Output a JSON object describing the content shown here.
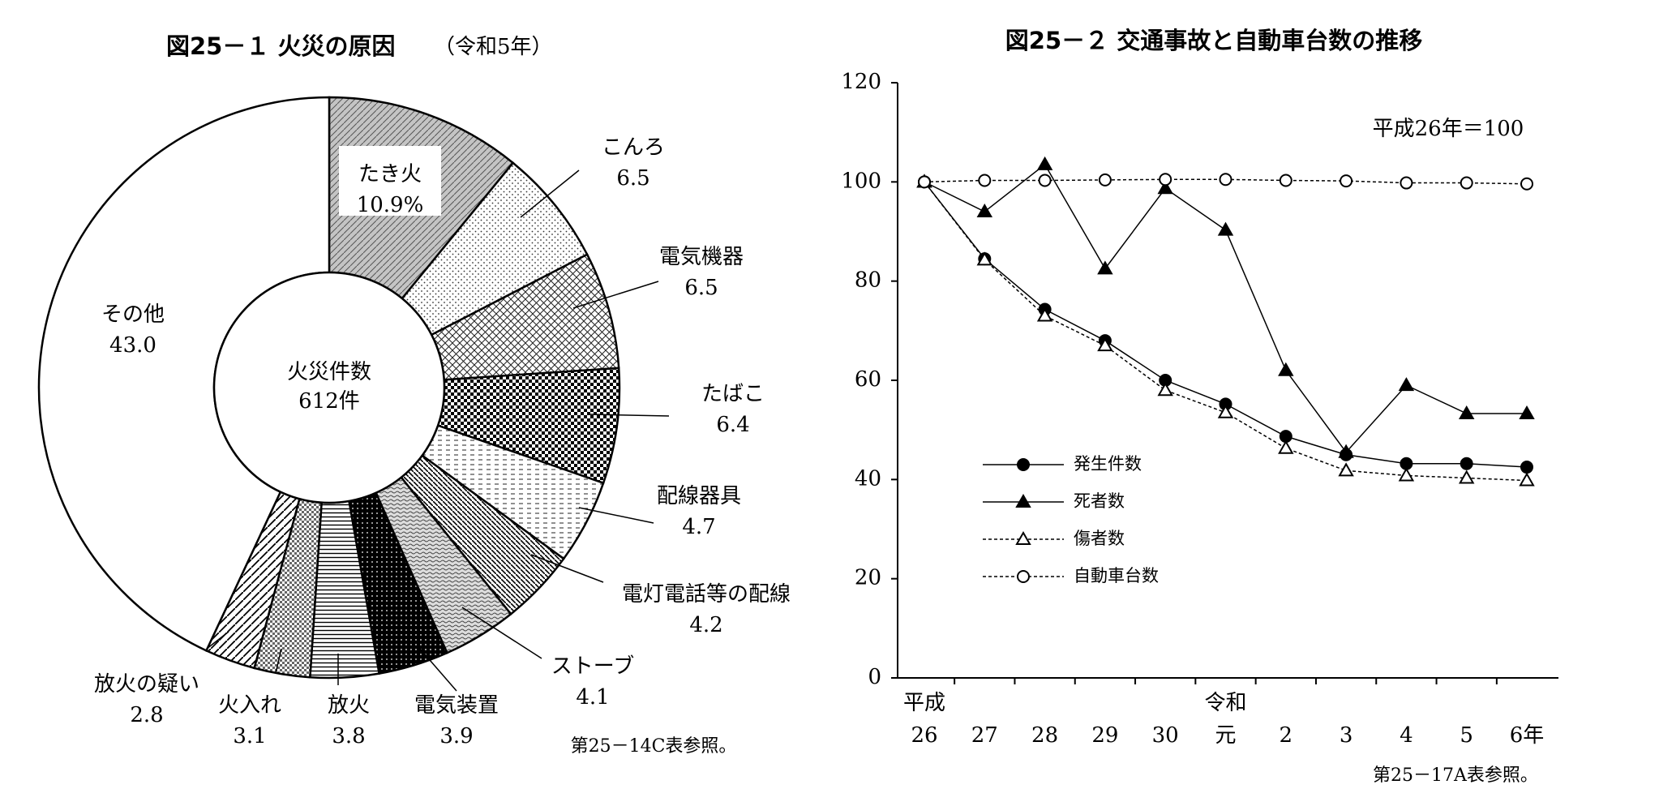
{
  "chart_data": [
    {
      "type": "pie",
      "title": "図25－１ 火災の原因",
      "subtitle": "（令和5年）",
      "center_label": [
        "火災件数",
        "612件"
      ],
      "categories": [
        "たき火",
        "こんろ",
        "電気機器",
        "たばこ",
        "配線器具",
        "電灯電話等の配線",
        "ストーブ",
        "電気装置",
        "放火",
        "火入れ",
        "放火の疑い",
        "その他"
      ],
      "values": [
        10.9,
        6.5,
        6.5,
        6.4,
        4.7,
        4.2,
        4.1,
        3.9,
        3.8,
        3.1,
        2.8,
        43.0
      ],
      "value_labels": [
        "10.9%",
        "6.5",
        "6.5",
        "6.4",
        "4.7",
        "4.2",
        "4.1",
        "3.9",
        "3.8",
        "3.1",
        "2.8",
        "43.0"
      ],
      "note": "第25－14C表参照。"
    },
    {
      "type": "line",
      "title": "図25－２ 交通事故と自動車台数の推移",
      "annotation": "平成26年＝100",
      "categories": [
        "26",
        "27",
        "28",
        "29",
        "30",
        "元",
        "2",
        "3",
        "4",
        "5",
        "6年"
      ],
      "era_labels": [
        "平成",
        null,
        null,
        null,
        null,
        "令和",
        null,
        null,
        null,
        null,
        null
      ],
      "ylim": [
        0,
        120
      ],
      "yticks": [
        0,
        20,
        40,
        60,
        80,
        100,
        120
      ],
      "series": [
        {
          "name": "発生件数",
          "color": "#000000",
          "marker": "circle-filled",
          "dashed": false,
          "values": [
            100,
            84.5,
            74.3,
            68,
            60,
            55.2,
            48.7,
            45,
            43.2,
            43.2,
            42.5
          ]
        },
        {
          "name": "死者数",
          "color": "#000000",
          "marker": "triangle-filled",
          "dashed": false,
          "values": [
            100,
            94,
            103.5,
            82.5,
            98.7,
            90.3,
            62,
            45.5,
            59,
            53.3,
            53.3
          ]
        },
        {
          "name": "傷者数",
          "color": "#000000",
          "marker": "triangle-open",
          "dashed": true,
          "values": [
            100,
            84.3,
            73,
            67,
            58,
            53.5,
            46.3,
            41.8,
            40.8,
            40.3,
            39.8
          ]
        },
        {
          "name": "自動車台数",
          "color": "#000000",
          "marker": "circle-open",
          "dashed": true,
          "values": [
            100,
            100.3,
            100.3,
            100.4,
            100.5,
            100.5,
            100.3,
            100.2,
            99.8,
            99.8,
            99.6
          ]
        }
      ],
      "note": "第25－17A表参照。"
    }
  ]
}
